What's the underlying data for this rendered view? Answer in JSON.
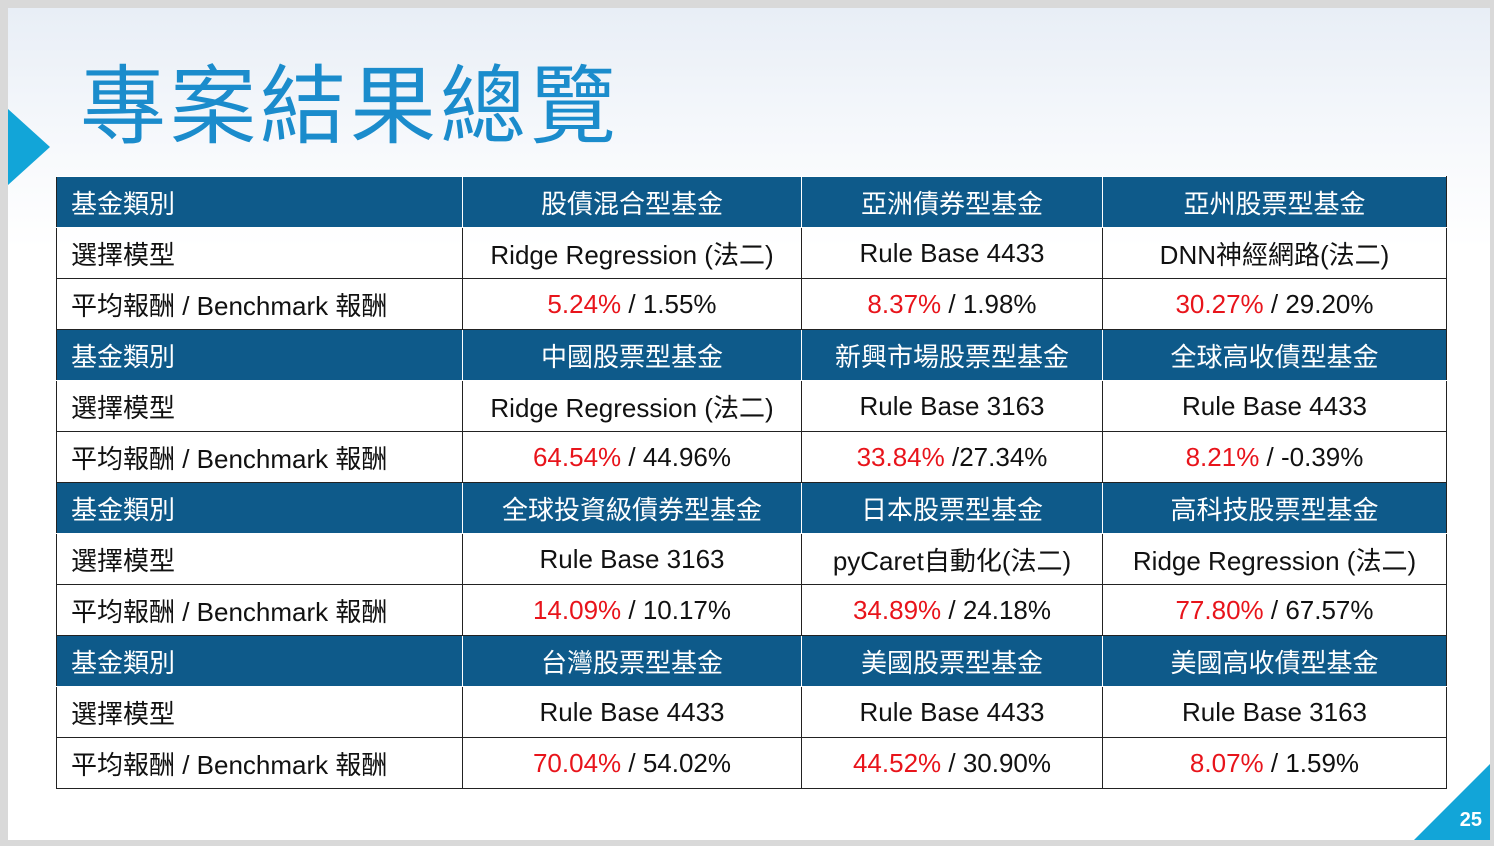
{
  "title": "專案結果總覽",
  "page_number": "25",
  "row_labels": {
    "category": "基金類別",
    "model": "選擇模型",
    "returns": "平均報酬 / Benchmark 報酬"
  },
  "groups": [
    {
      "funds": [
        {
          "category": "股債混合型基金",
          "model": "Ridge Regression (法二)",
          "avg_return": "5.24%",
          "benchmark": " / 1.55%"
        },
        {
          "category": "亞洲債券型基金",
          "model": "Rule Base 4433",
          "avg_return": "8.37%",
          "benchmark": " / 1.98%"
        },
        {
          "category": "亞州股票型基金",
          "model": "DNN神經網路(法二)",
          "avg_return": "30.27%",
          "benchmark": " / 29.20%"
        }
      ]
    },
    {
      "funds": [
        {
          "category": "中國股票型基金",
          "model": "Ridge Regression (法二)",
          "avg_return": "64.54%",
          "benchmark": " / 44.96%"
        },
        {
          "category": "新興市場股票型基金",
          "model": "Rule Base 3163",
          "avg_return": "33.84%",
          "benchmark": " /27.34%"
        },
        {
          "category": "全球高收債型基金",
          "model": "Rule Base 4433",
          "avg_return": "8.21%",
          "benchmark": " / -0.39%"
        }
      ]
    },
    {
      "funds": [
        {
          "category": "全球投資級債券型基金",
          "model": "Rule Base 3163",
          "avg_return": "14.09%",
          "benchmark": " / 10.17%"
        },
        {
          "category": "日本股票型基金",
          "model": "pyCaret自動化(法二)",
          "avg_return": "34.89%",
          "benchmark": " / 24.18%"
        },
        {
          "category": "高科技股票型基金",
          "model": "Ridge Regression (法二)",
          "avg_return": "77.80%",
          "benchmark": " / 67.57%"
        }
      ]
    },
    {
      "funds": [
        {
          "category": "台灣股票型基金",
          "model": "Rule Base 4433",
          "avg_return": "70.04%",
          "benchmark": " / 54.02%"
        },
        {
          "category": "美國股票型基金",
          "model": "Rule Base 4433",
          "avg_return": "44.52%",
          "benchmark": " / 30.90%"
        },
        {
          "category": "美國高收債型基金",
          "model": "Rule Base 3163",
          "avg_return": "8.07%",
          "benchmark": " / 1.59%"
        }
      ]
    }
  ],
  "colors": {
    "title": "#1b8ccc",
    "header_bg": "#0e5a8a",
    "accent": "#12a5d8",
    "highlight": "#e8141b"
  }
}
